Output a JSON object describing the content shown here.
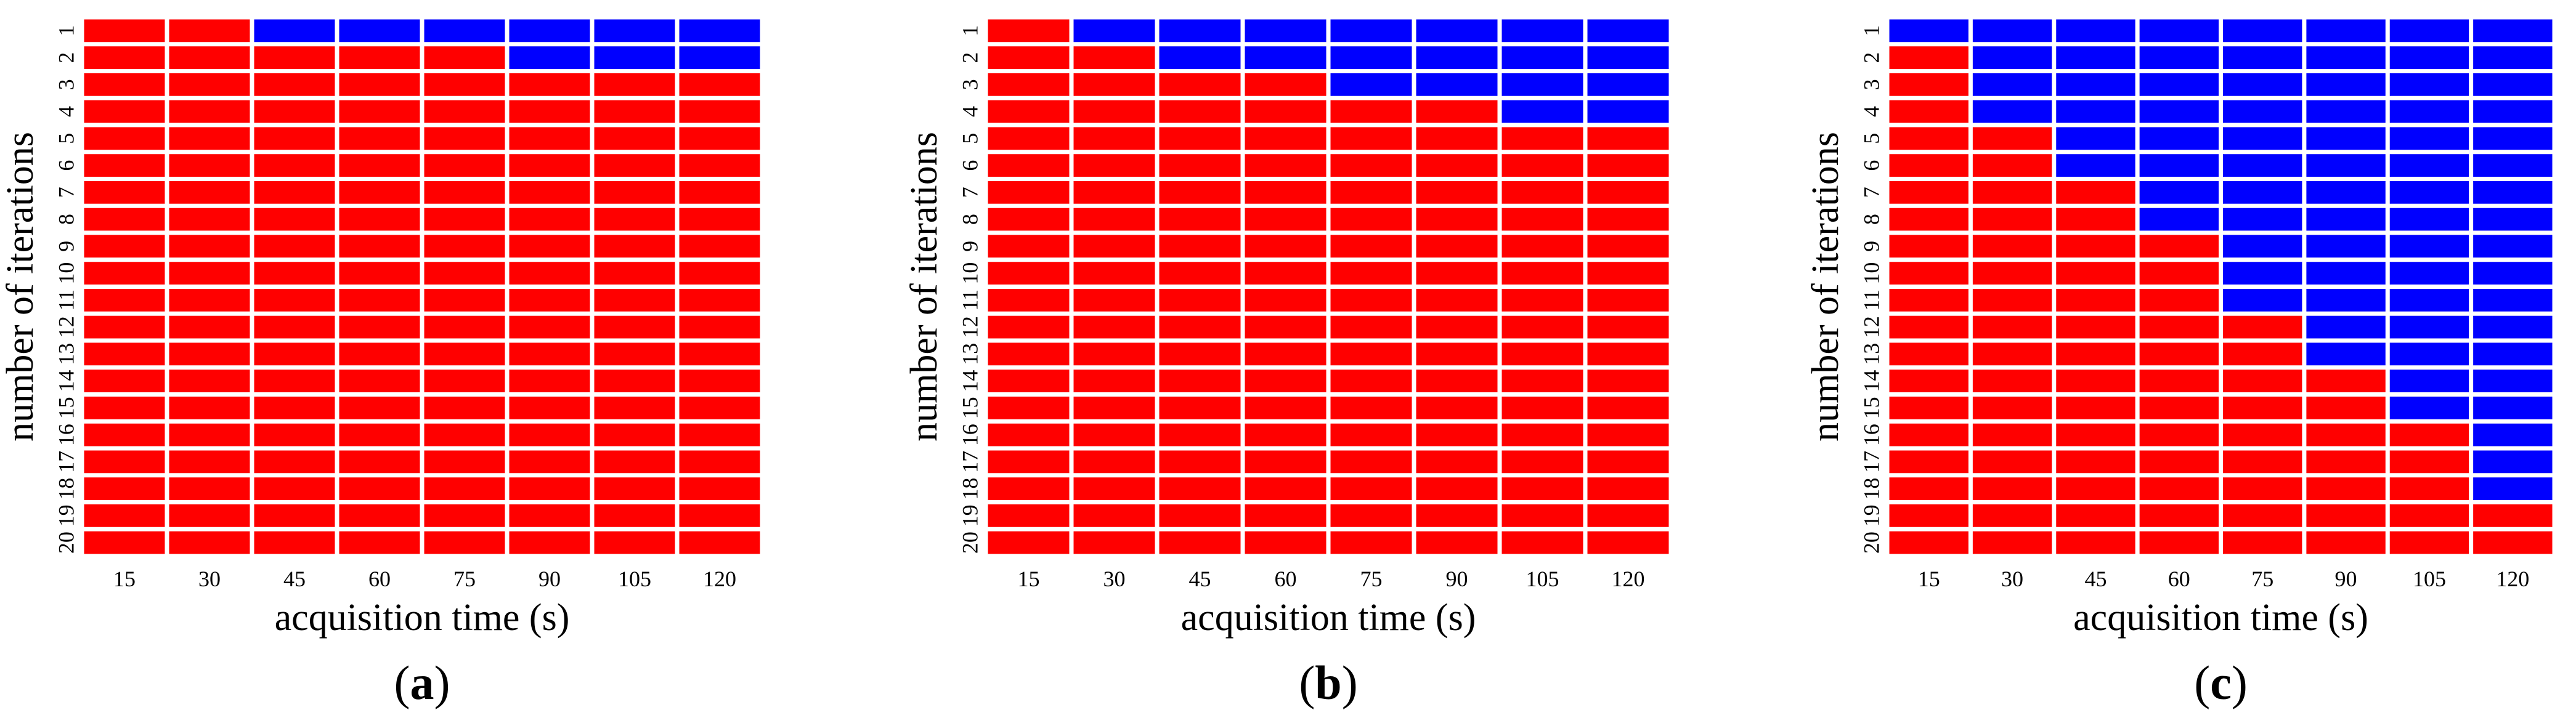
{
  "colors": {
    "positive": "#ff0000",
    "negative": "#0000ff",
    "grid": "#ffffff"
  },
  "chart_data": [
    {
      "type": "heatmap",
      "panel_label": "a",
      "xlabel": "acquisition time (s)",
      "ylabel": "number of iterations",
      "x": [
        "15",
        "30",
        "45",
        "60",
        "75",
        "90",
        "105",
        "120"
      ],
      "y": [
        "1",
        "2",
        "3",
        "4",
        "5",
        "6",
        "7",
        "8",
        "9",
        "10",
        "11",
        "12",
        "13",
        "14",
        "15",
        "16",
        "17",
        "18",
        "19",
        "20"
      ],
      "values": [
        [
          1,
          1,
          0,
          0,
          0,
          0,
          0,
          0
        ],
        [
          1,
          1,
          1,
          1,
          1,
          0,
          0,
          0
        ],
        [
          1,
          1,
          1,
          1,
          1,
          1,
          1,
          1
        ],
        [
          1,
          1,
          1,
          1,
          1,
          1,
          1,
          1
        ],
        [
          1,
          1,
          1,
          1,
          1,
          1,
          1,
          1
        ],
        [
          1,
          1,
          1,
          1,
          1,
          1,
          1,
          1
        ],
        [
          1,
          1,
          1,
          1,
          1,
          1,
          1,
          1
        ],
        [
          1,
          1,
          1,
          1,
          1,
          1,
          1,
          1
        ],
        [
          1,
          1,
          1,
          1,
          1,
          1,
          1,
          1
        ],
        [
          1,
          1,
          1,
          1,
          1,
          1,
          1,
          1
        ],
        [
          1,
          1,
          1,
          1,
          1,
          1,
          1,
          1
        ],
        [
          1,
          1,
          1,
          1,
          1,
          1,
          1,
          1
        ],
        [
          1,
          1,
          1,
          1,
          1,
          1,
          1,
          1
        ],
        [
          1,
          1,
          1,
          1,
          1,
          1,
          1,
          1
        ],
        [
          1,
          1,
          1,
          1,
          1,
          1,
          1,
          1
        ],
        [
          1,
          1,
          1,
          1,
          1,
          1,
          1,
          1
        ],
        [
          1,
          1,
          1,
          1,
          1,
          1,
          1,
          1
        ],
        [
          1,
          1,
          1,
          1,
          1,
          1,
          1,
          1
        ],
        [
          1,
          1,
          1,
          1,
          1,
          1,
          1,
          1
        ],
        [
          1,
          1,
          1,
          1,
          1,
          1,
          1,
          1
        ]
      ]
    },
    {
      "type": "heatmap",
      "panel_label": "b",
      "xlabel": "acquisition time (s)",
      "ylabel": "number of iterations",
      "x": [
        "15",
        "30",
        "45",
        "60",
        "75",
        "90",
        "105",
        "120"
      ],
      "y": [
        "1",
        "2",
        "3",
        "4",
        "5",
        "6",
        "7",
        "8",
        "9",
        "10",
        "11",
        "12",
        "13",
        "14",
        "15",
        "16",
        "17",
        "18",
        "19",
        "20"
      ],
      "values": [
        [
          1,
          0,
          0,
          0,
          0,
          0,
          0,
          0
        ],
        [
          1,
          1,
          0,
          0,
          0,
          0,
          0,
          0
        ],
        [
          1,
          1,
          1,
          1,
          0,
          0,
          0,
          0
        ],
        [
          1,
          1,
          1,
          1,
          1,
          1,
          0,
          0
        ],
        [
          1,
          1,
          1,
          1,
          1,
          1,
          1,
          1
        ],
        [
          1,
          1,
          1,
          1,
          1,
          1,
          1,
          1
        ],
        [
          1,
          1,
          1,
          1,
          1,
          1,
          1,
          1
        ],
        [
          1,
          1,
          1,
          1,
          1,
          1,
          1,
          1
        ],
        [
          1,
          1,
          1,
          1,
          1,
          1,
          1,
          1
        ],
        [
          1,
          1,
          1,
          1,
          1,
          1,
          1,
          1
        ],
        [
          1,
          1,
          1,
          1,
          1,
          1,
          1,
          1
        ],
        [
          1,
          1,
          1,
          1,
          1,
          1,
          1,
          1
        ],
        [
          1,
          1,
          1,
          1,
          1,
          1,
          1,
          1
        ],
        [
          1,
          1,
          1,
          1,
          1,
          1,
          1,
          1
        ],
        [
          1,
          1,
          1,
          1,
          1,
          1,
          1,
          1
        ],
        [
          1,
          1,
          1,
          1,
          1,
          1,
          1,
          1
        ],
        [
          1,
          1,
          1,
          1,
          1,
          1,
          1,
          1
        ],
        [
          1,
          1,
          1,
          1,
          1,
          1,
          1,
          1
        ],
        [
          1,
          1,
          1,
          1,
          1,
          1,
          1,
          1
        ],
        [
          1,
          1,
          1,
          1,
          1,
          1,
          1,
          1
        ]
      ]
    },
    {
      "type": "heatmap",
      "panel_label": "c",
      "xlabel": "acquisition time (s)",
      "ylabel": "number of iterations",
      "x": [
        "15",
        "30",
        "45",
        "60",
        "75",
        "90",
        "105",
        "120"
      ],
      "y": [
        "1",
        "2",
        "3",
        "4",
        "5",
        "6",
        "7",
        "8",
        "9",
        "10",
        "11",
        "12",
        "13",
        "14",
        "15",
        "16",
        "17",
        "18",
        "19",
        "20"
      ],
      "values": [
        [
          0,
          0,
          0,
          0,
          0,
          0,
          0,
          0
        ],
        [
          1,
          0,
          0,
          0,
          0,
          0,
          0,
          0
        ],
        [
          1,
          0,
          0,
          0,
          0,
          0,
          0,
          0
        ],
        [
          1,
          0,
          0,
          0,
          0,
          0,
          0,
          0
        ],
        [
          1,
          1,
          0,
          0,
          0,
          0,
          0,
          0
        ],
        [
          1,
          1,
          0,
          0,
          0,
          0,
          0,
          0
        ],
        [
          1,
          1,
          1,
          0,
          0,
          0,
          0,
          0
        ],
        [
          1,
          1,
          1,
          0,
          0,
          0,
          0,
          0
        ],
        [
          1,
          1,
          1,
          1,
          0,
          0,
          0,
          0
        ],
        [
          1,
          1,
          1,
          1,
          0,
          0,
          0,
          0
        ],
        [
          1,
          1,
          1,
          1,
          0,
          0,
          0,
          0
        ],
        [
          1,
          1,
          1,
          1,
          1,
          0,
          0,
          0
        ],
        [
          1,
          1,
          1,
          1,
          1,
          0,
          0,
          0
        ],
        [
          1,
          1,
          1,
          1,
          1,
          1,
          0,
          0
        ],
        [
          1,
          1,
          1,
          1,
          1,
          1,
          0,
          0
        ],
        [
          1,
          1,
          1,
          1,
          1,
          1,
          1,
          0
        ],
        [
          1,
          1,
          1,
          1,
          1,
          1,
          1,
          0
        ],
        [
          1,
          1,
          1,
          1,
          1,
          1,
          1,
          0
        ],
        [
          1,
          1,
          1,
          1,
          1,
          1,
          1,
          1
        ],
        [
          1,
          1,
          1,
          1,
          1,
          1,
          1,
          1
        ]
      ]
    }
  ]
}
